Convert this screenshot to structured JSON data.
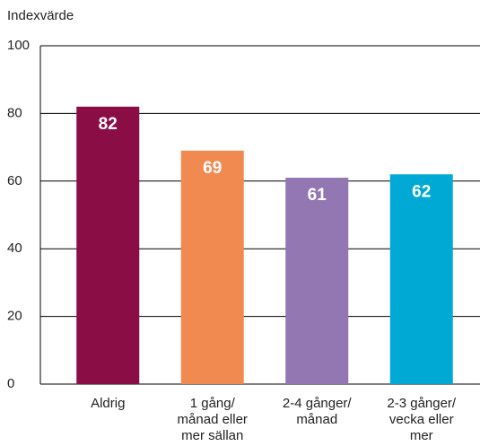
{
  "chart_data": {
    "type": "bar",
    "ylabel": "Indexvärde",
    "categories": [
      [
        "Aldrig"
      ],
      [
        "1 gång/",
        "månad eller",
        "mer sällan"
      ],
      [
        "2-4 gånger/",
        "månad"
      ],
      [
        "2-3 gånger/",
        "vecka eller",
        "mer"
      ]
    ],
    "values": [
      82,
      69,
      61,
      62
    ],
    "colors": [
      "#8b0d45",
      "#f08a50",
      "#9277b3",
      "#00a9d4"
    ],
    "ylim": [
      0,
      100
    ],
    "yticks": [
      0,
      20,
      40,
      60,
      80,
      100
    ],
    "grid": true
  }
}
